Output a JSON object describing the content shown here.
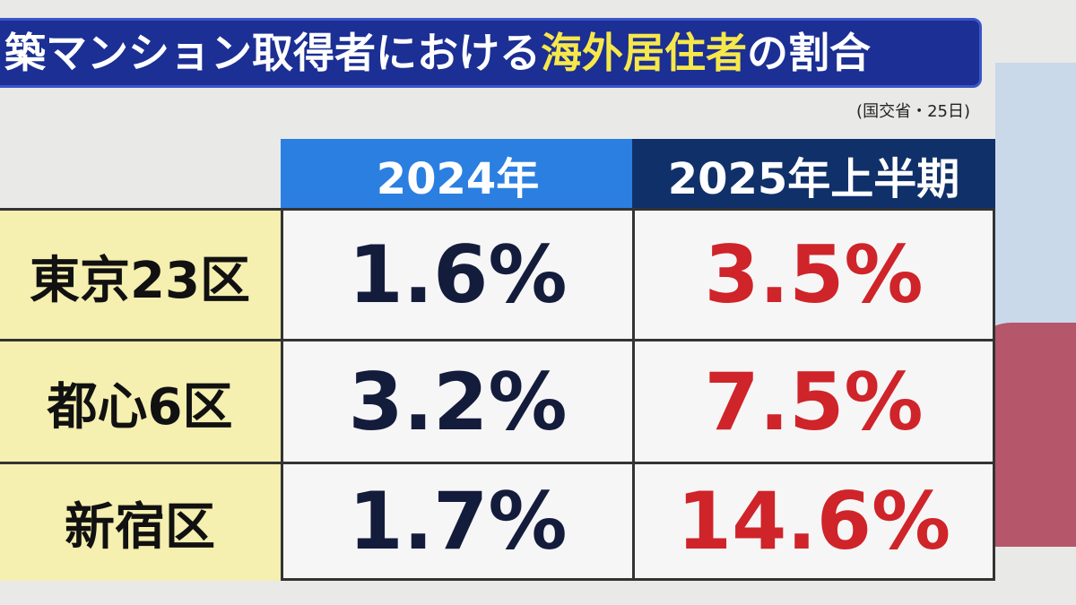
{
  "header": {
    "title_prefix": "築マンション取得者における",
    "title_highlight": "海外居住者",
    "title_suffix": "の割合",
    "source": "(国交省・25日)"
  },
  "table": {
    "columns": [
      "2024年",
      "2025年上半期"
    ],
    "rows": [
      [
        "東京23区",
        "1.6%",
        "3.5%"
      ],
      [
        "都心6区",
        "3.2%",
        "7.5%"
      ],
      [
        "新宿区",
        "1.7%",
        "14.6%"
      ]
    ]
  }
}
